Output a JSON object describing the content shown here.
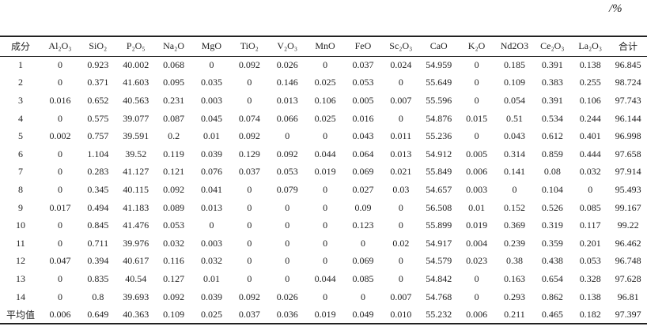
{
  "unit": "/%",
  "table": {
    "header": [
      "成分",
      "Al₂O₃",
      "SiO₂",
      "P₂O₅",
      "Na₂O",
      "MgO",
      "TiO₂",
      "V₂O₃",
      "MnO",
      "FeO",
      "Sc₂O₃",
      "CaO",
      "K₂O",
      "Nd2O3",
      "Ce₂O₃",
      "La₂O₃",
      "合计"
    ],
    "rows": [
      [
        "1",
        "0",
        "0.923",
        "40.002",
        "0.068",
        "0",
        "0.092",
        "0.026",
        "0",
        "0.037",
        "0.024",
        "54.959",
        "0",
        "0.185",
        "0.391",
        "0.138",
        "96.845"
      ],
      [
        "2",
        "0",
        "0.371",
        "41.603",
        "0.095",
        "0.035",
        "0",
        "0.146",
        "0.025",
        "0.053",
        "0",
        "55.649",
        "0",
        "0.109",
        "0.383",
        "0.255",
        "98.724"
      ],
      [
        "3",
        "0.016",
        "0.652",
        "40.563",
        "0.231",
        "0.003",
        "0",
        "0.013",
        "0.106",
        "0.005",
        "0.007",
        "55.596",
        "0",
        "0.054",
        "0.391",
        "0.106",
        "97.743"
      ],
      [
        "4",
        "0",
        "0.575",
        "39.077",
        "0.087",
        "0.045",
        "0.074",
        "0.066",
        "0.025",
        "0.016",
        "0",
        "54.876",
        "0.015",
        "0.51",
        "0.534",
        "0.244",
        "96.144"
      ],
      [
        "5",
        "0.002",
        "0.757",
        "39.591",
        "0.2",
        "0.01",
        "0.092",
        "0",
        "0",
        "0.043",
        "0.011",
        "55.236",
        "0",
        "0.043",
        "0.612",
        "0.401",
        "96.998"
      ],
      [
        "6",
        "0",
        "1.104",
        "39.52",
        "0.119",
        "0.039",
        "0.129",
        "0.092",
        "0.044",
        "0.064",
        "0.013",
        "54.912",
        "0.005",
        "0.314",
        "0.859",
        "0.444",
        "97.658"
      ],
      [
        "7",
        "0",
        "0.283",
        "41.127",
        "0.121",
        "0.076",
        "0.037",
        "0.053",
        "0.019",
        "0.069",
        "0.021",
        "55.849",
        "0.006",
        "0.141",
        "0.08",
        "0.032",
        "97.914"
      ],
      [
        "8",
        "0",
        "0.345",
        "40.115",
        "0.092",
        "0.041",
        "0",
        "0.079",
        "0",
        "0.027",
        "0.03",
        "54.657",
        "0.003",
        "0",
        "0.104",
        "0",
        "95.493"
      ],
      [
        "9",
        "0.017",
        "0.494",
        "41.183",
        "0.089",
        "0.013",
        "0",
        "0",
        "0",
        "0.09",
        "0",
        "56.508",
        "0.01",
        "0.152",
        "0.526",
        "0.085",
        "99.167"
      ],
      [
        "10",
        "0",
        "0.845",
        "41.476",
        "0.053",
        "0",
        "0",
        "0",
        "0",
        "0.123",
        "0",
        "55.899",
        "0.019",
        "0.369",
        "0.319",
        "0.117",
        "99.22"
      ],
      [
        "11",
        "0",
        "0.711",
        "39.976",
        "0.032",
        "0.003",
        "0",
        "0",
        "0",
        "0",
        "0.02",
        "54.917",
        "0.004",
        "0.239",
        "0.359",
        "0.201",
        "96.462"
      ],
      [
        "12",
        "0.047",
        "0.394",
        "40.617",
        "0.116",
        "0.032",
        "0",
        "0",
        "0",
        "0.069",
        "0",
        "54.579",
        "0.023",
        "0.38",
        "0.438",
        "0.053",
        "96.748"
      ],
      [
        "13",
        "0",
        "0.835",
        "40.54",
        "0.127",
        "0.01",
        "0",
        "0",
        "0.044",
        "0.085",
        "0",
        "54.842",
        "0",
        "0.163",
        "0.654",
        "0.328",
        "97.628"
      ],
      [
        "14",
        "0",
        "0.8",
        "39.693",
        "0.092",
        "0.039",
        "0.092",
        "0.026",
        "0",
        "0",
        "0.007",
        "54.768",
        "0",
        "0.293",
        "0.862",
        "0.138",
        "96.81"
      ],
      [
        "平均值",
        "0.006",
        "0.649",
        "40.363",
        "0.109",
        "0.025",
        "0.037",
        "0.036",
        "0.019",
        "0.049",
        "0.010",
        "55.232",
        "0.006",
        "0.211",
        "0.465",
        "0.182",
        "97.397"
      ]
    ]
  }
}
